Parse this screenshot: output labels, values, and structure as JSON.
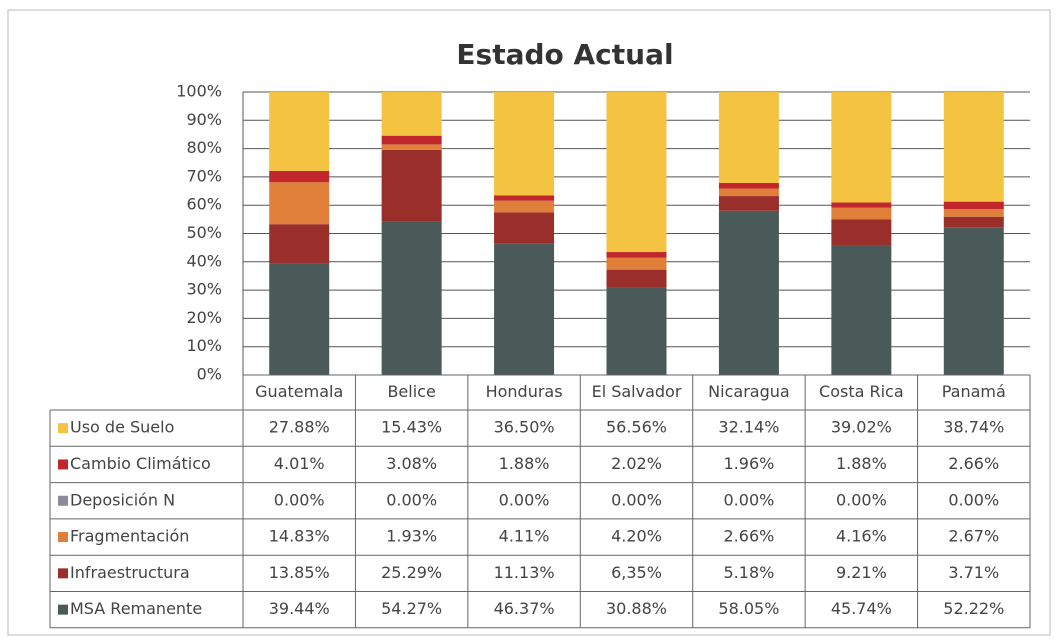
{
  "chart_data": {
    "type": "stacked_bar_table",
    "title": "Estado Actual",
    "categories": [
      "Guatemala",
      "Belice",
      "Honduras",
      "El Salvador",
      "Nicaragua",
      "Costa Rica",
      "Panamá"
    ],
    "series": [
      {
        "name": "Uso de Suelo",
        "color": "#f5c342",
        "values": [
          27.88,
          15.43,
          36.5,
          56.56,
          32.14,
          39.02,
          38.74
        ],
        "value_labels": [
          "27.88%",
          "15.43%",
          "36.50%",
          "56.56%",
          "32.14%",
          "39.02%",
          "38.74%"
        ]
      },
      {
        "name": "Cambio Climático",
        "color": "#c0262c",
        "values": [
          4.01,
          3.08,
          1.88,
          2.02,
          1.96,
          1.88,
          2.66
        ],
        "value_labels": [
          "4.01%",
          "3.08%",
          "1.88%",
          "2.02%",
          "1.96%",
          "1.88%",
          "2.66%"
        ]
      },
      {
        "name": "Deposición N",
        "color": "#8e8a9a",
        "values": [
          0,
          0,
          0,
          0,
          0,
          0,
          0
        ],
        "value_labels": [
          "0.00%",
          "0.00%",
          "0.00%",
          "0.00%",
          "0.00%",
          "0.00%",
          "0.00%"
        ]
      },
      {
        "name": "Fragmentación",
        "color": "#e07f3a",
        "values": [
          14.83,
          1.93,
          4.11,
          4.2,
          2.66,
          4.16,
          2.67
        ],
        "value_labels": [
          "14.83%",
          "1.93%",
          "4.11%",
          "4.20%",
          "2.66%",
          "4.16%",
          "2.67%"
        ]
      },
      {
        "name": "Infraestructura",
        "color": "#9a2e2a",
        "values": [
          13.85,
          25.29,
          11.13,
          6.35,
          5.18,
          9.21,
          3.71
        ],
        "value_labels": [
          "13.85%",
          "25.29%",
          "11.13%",
          "6,35%",
          "5.18%",
          "9.21%",
          "3.71%"
        ]
      },
      {
        "name": "MSA Remanente",
        "color": "#4a5a58",
        "values": [
          39.44,
          54.27,
          46.37,
          30.88,
          58.05,
          45.74,
          52.22
        ],
        "value_labels": [
          "39.44%",
          "54.27%",
          "46.37%",
          "30.88%",
          "58.05%",
          "45.74%",
          "52.22%"
        ]
      }
    ],
    "ylim": [
      0,
      100
    ],
    "yticks": [
      {
        "value": 0,
        "label": "0%"
      },
      {
        "value": 10,
        "label": "10%"
      },
      {
        "value": 20,
        "label": "20%"
      },
      {
        "value": 30,
        "label": "30%"
      },
      {
        "value": 40,
        "label": "40%"
      },
      {
        "value": 50,
        "label": "50%"
      },
      {
        "value": 60,
        "label": "60%"
      },
      {
        "value": 70,
        "label": "70%"
      },
      {
        "value": 80,
        "label": "80%"
      },
      {
        "value": 90,
        "label": "90%"
      },
      {
        "value": 100,
        "label": "100%"
      }
    ],
    "grid": true
  }
}
